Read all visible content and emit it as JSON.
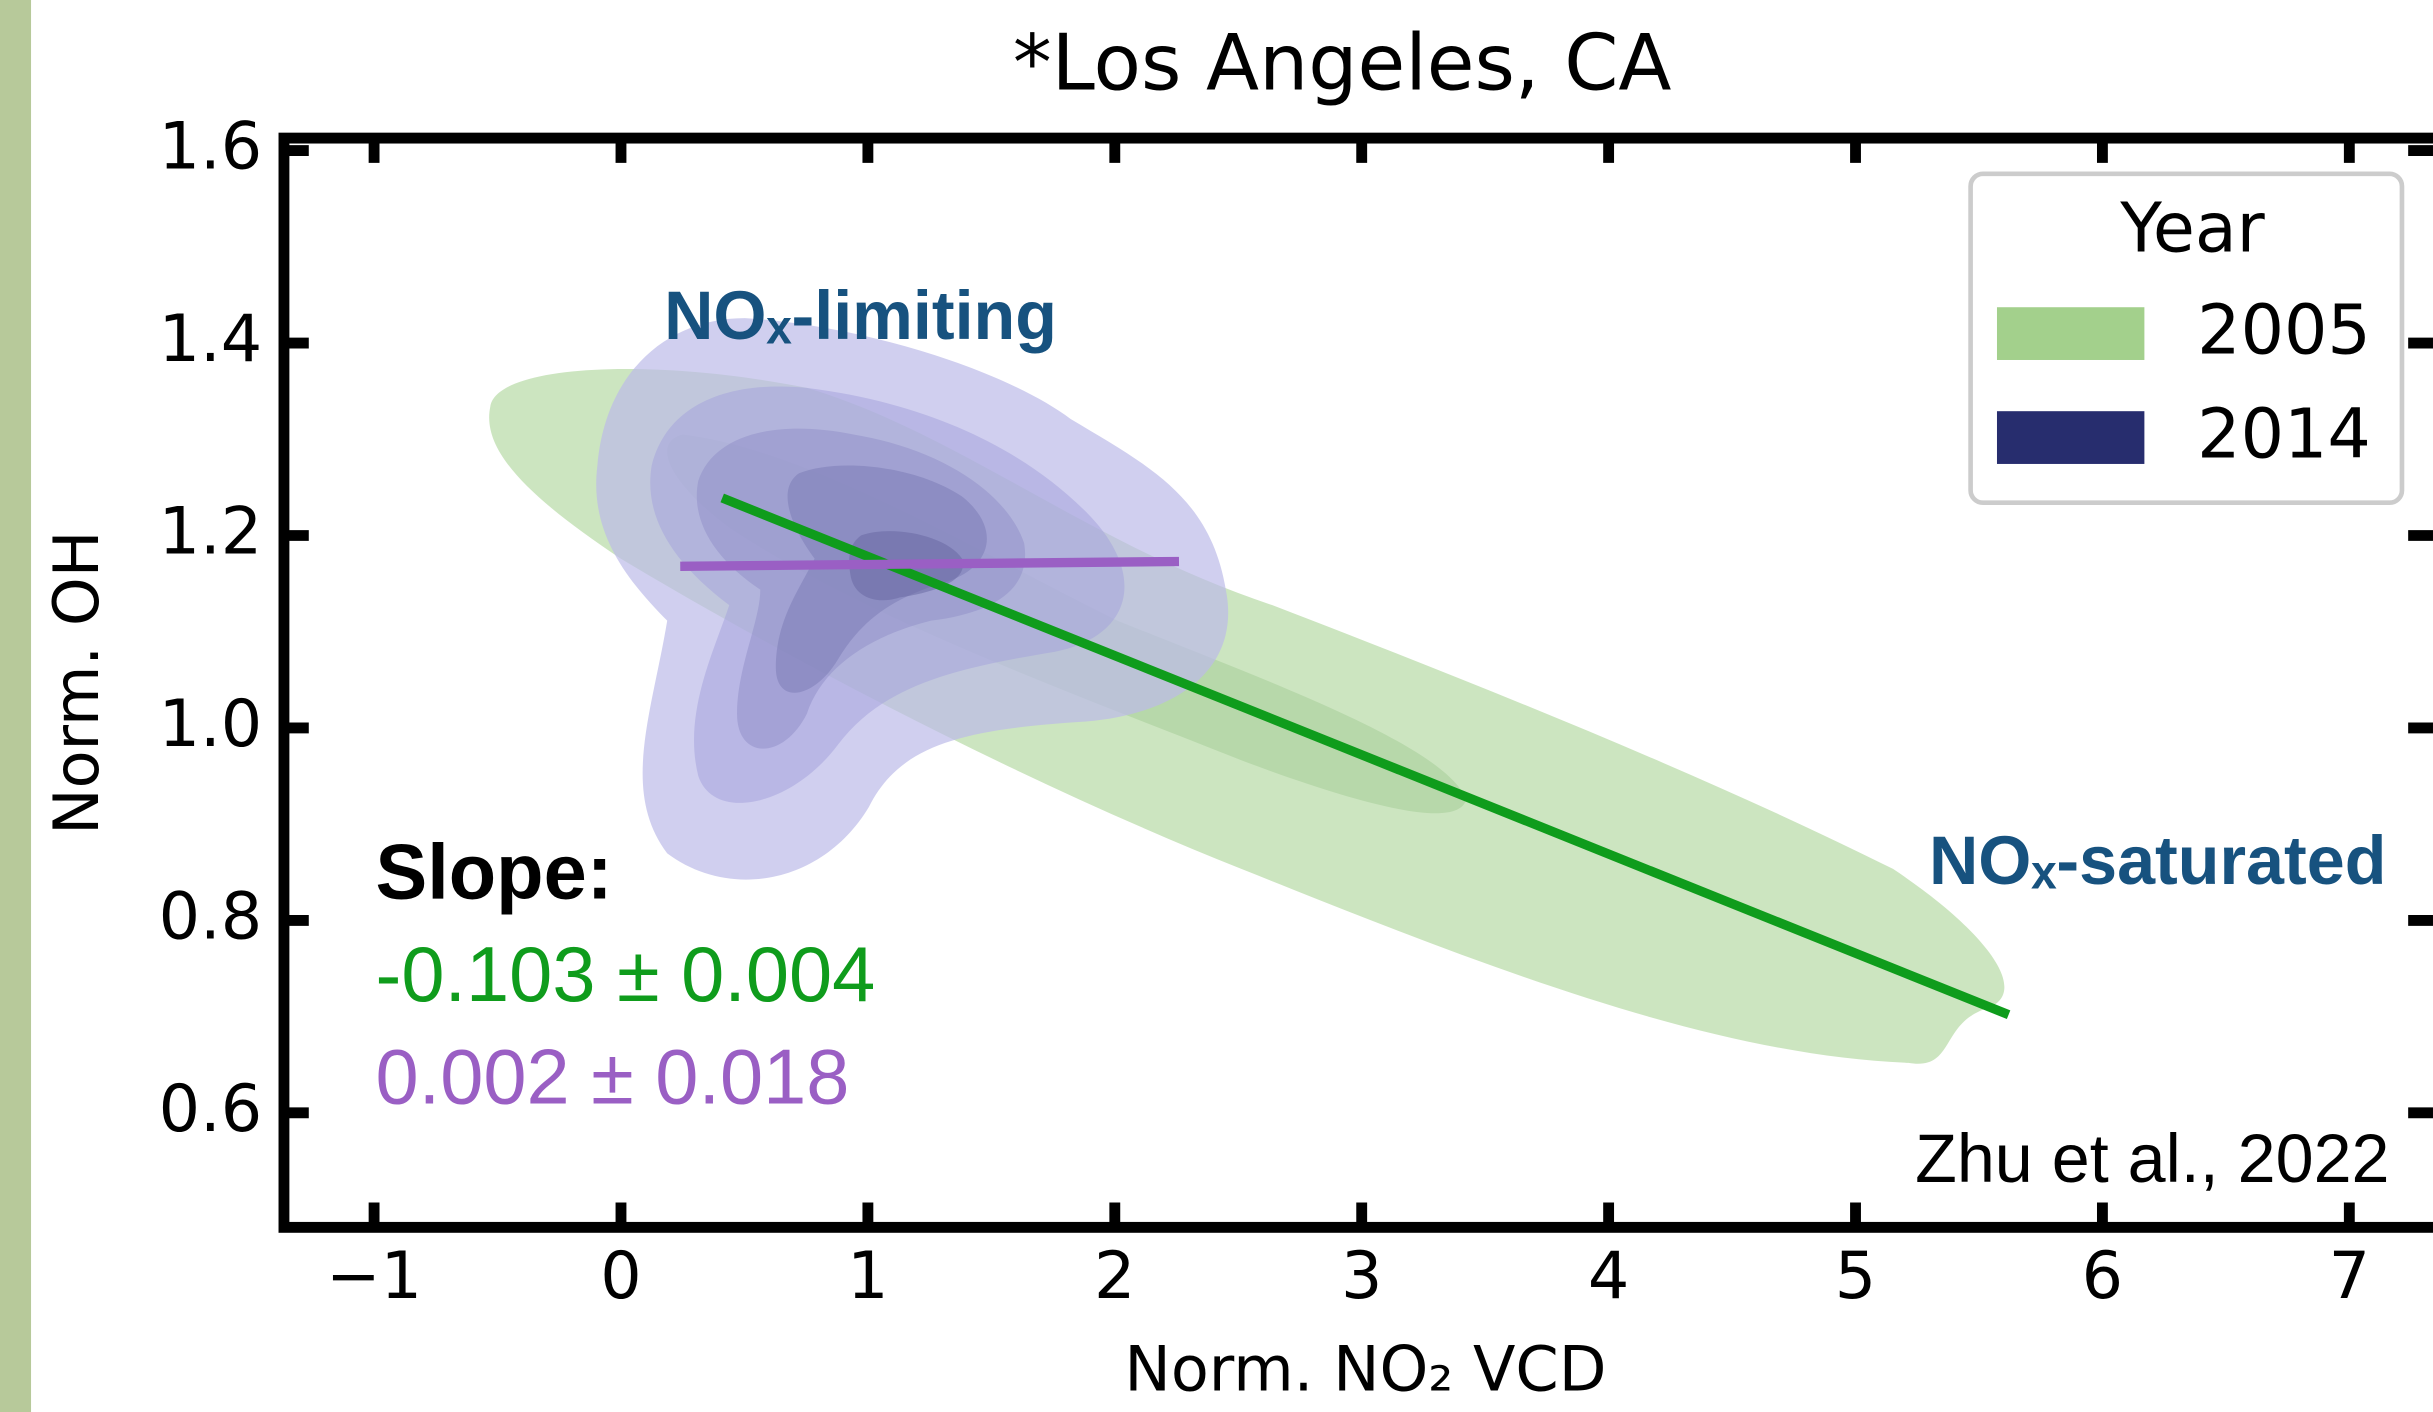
{
  "chart_data": {
    "type": "line",
    "title": "*Los Angeles, CA",
    "x_label": "Norm. NO₂ VCD",
    "y_label": "Norm. OH",
    "xlim": [
      -1.365,
      7.35
    ],
    "ylim": [
      0.481,
      1.613
    ],
    "xticks": [
      {
        "value": -1,
        "label": "−1"
      },
      0,
      1,
      2,
      3,
      4,
      5,
      6,
      7
    ],
    "yticks": [
      0.6,
      0.8,
      {
        "value": 1,
        "label": "1.0"
      },
      1.2,
      1.4,
      1.6
    ],
    "legend": {
      "title": "Year",
      "loc": "upper right"
    },
    "series": [
      {
        "name": "2005",
        "color": "#a3d08c",
        "line_color": "#0f9c1c",
        "x": [
          0.41,
          5.62
        ],
        "values": [
          1.239,
          0.702
        ]
      },
      {
        "name": "2014",
        "color": "#272d6e",
        "line_color": "#9a5fc4",
        "x": [
          0.24,
          2.26
        ],
        "values": [
          1.168,
          1.173
        ]
      }
    ],
    "annotations": {
      "limiting": "NOₓ-limiting",
      "saturated": "NOₓ-saturated",
      "slope_title": "Slope:",
      "slope_2005": "-0.103 ± 0.004",
      "slope_2014": "0.002 ± 0.018",
      "source": "Zhu et al., 2022"
    }
  }
}
